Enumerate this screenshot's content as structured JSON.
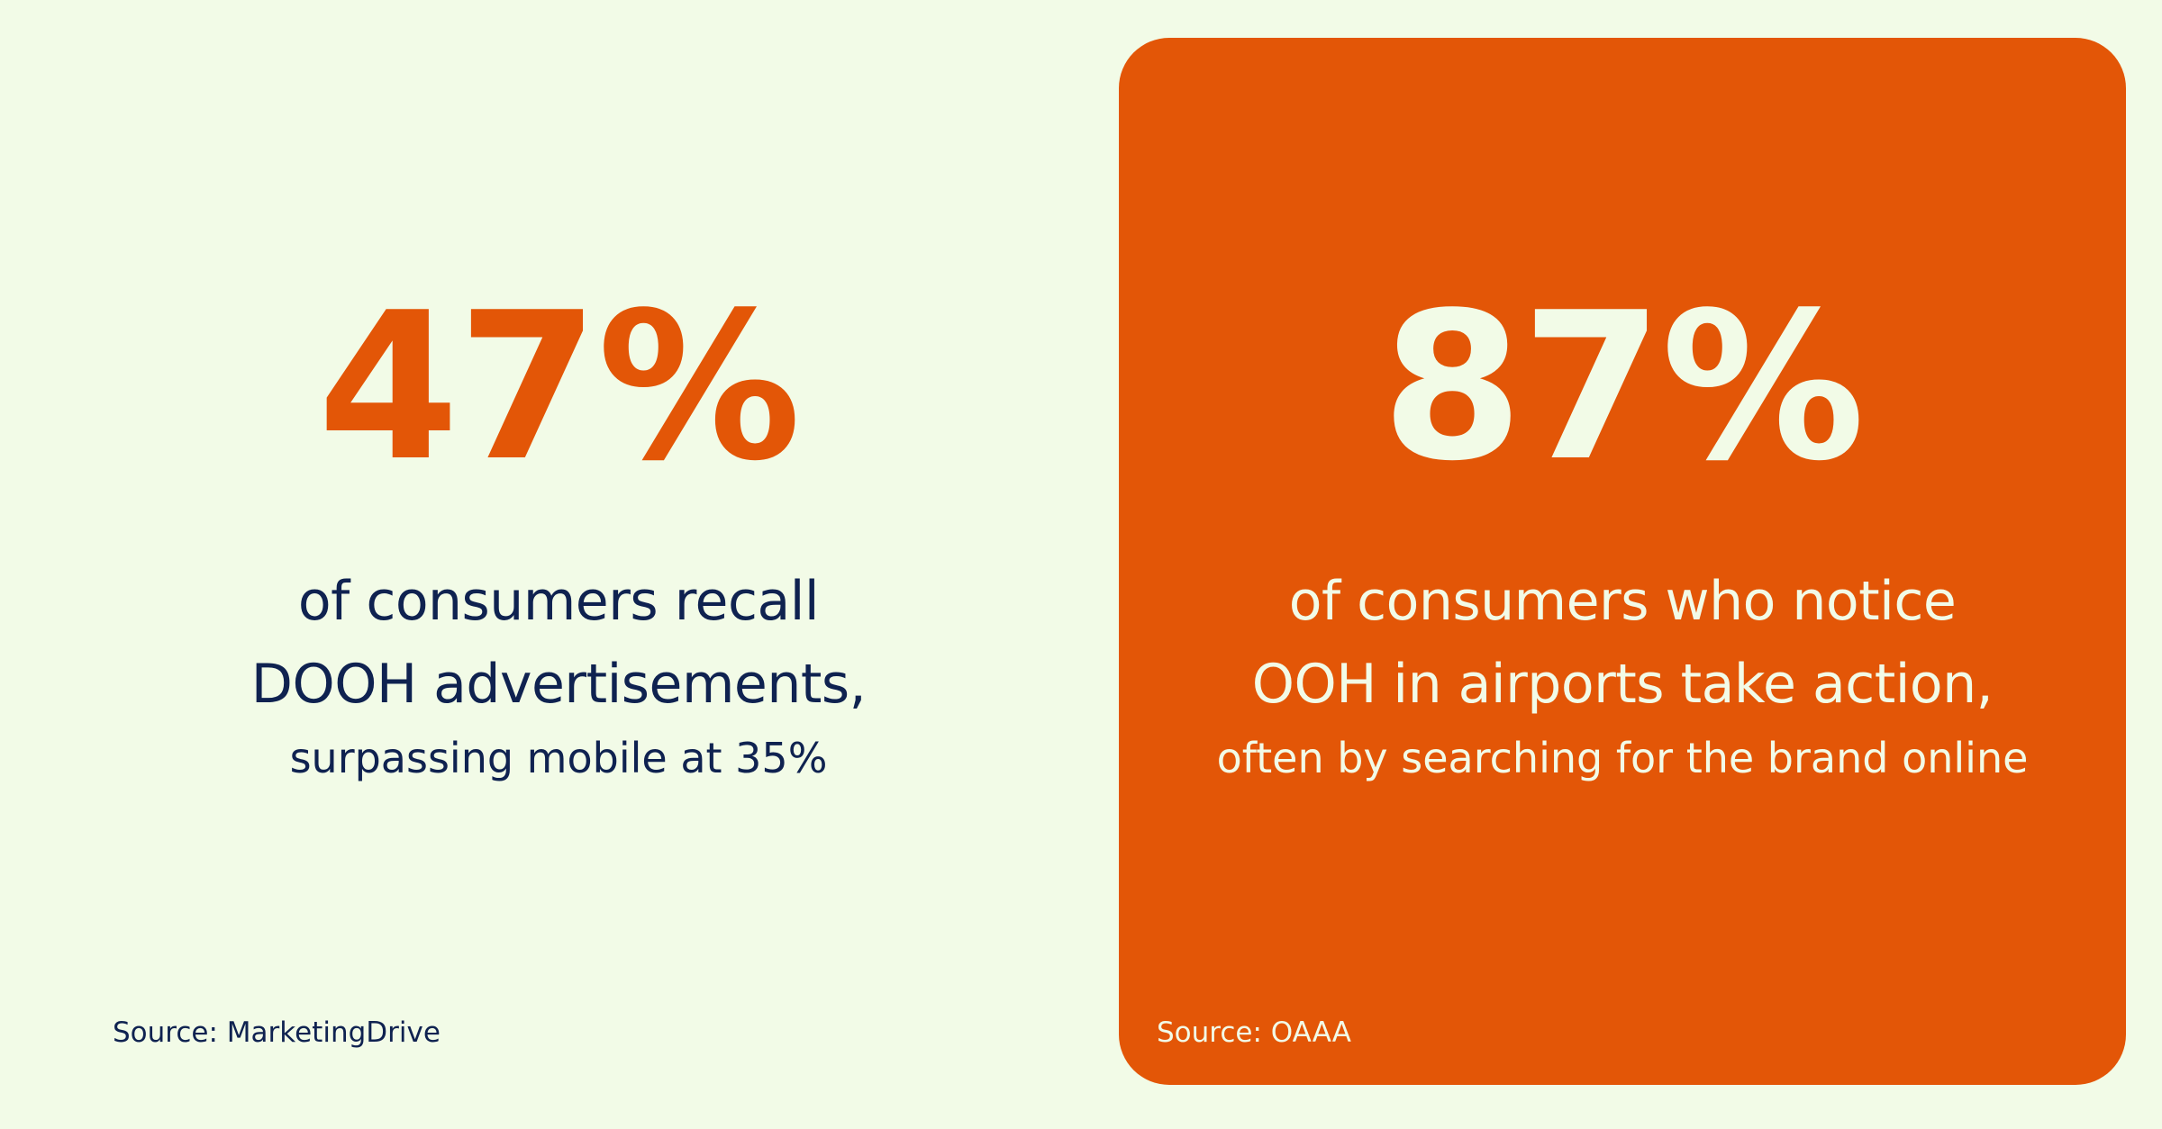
{
  "colors": {
    "background": "#f2fbe7",
    "accent": "#e35607",
    "text_dark": "#0f2250",
    "text_light": "#f2fbe7"
  },
  "left_stat": {
    "percentage": "47%",
    "headline_line1": "of consumers recall",
    "headline_line2": "DOOH advertisements,",
    "subline": "surpassing mobile at 35%",
    "source": "Source: MarketingDrive"
  },
  "right_stat": {
    "percentage": "87%",
    "headline_line1": "of consumers who notice",
    "headline_line2": "OOH in airports take action,",
    "subline": "often by searching for the brand online",
    "source": "Source: OAAA"
  }
}
